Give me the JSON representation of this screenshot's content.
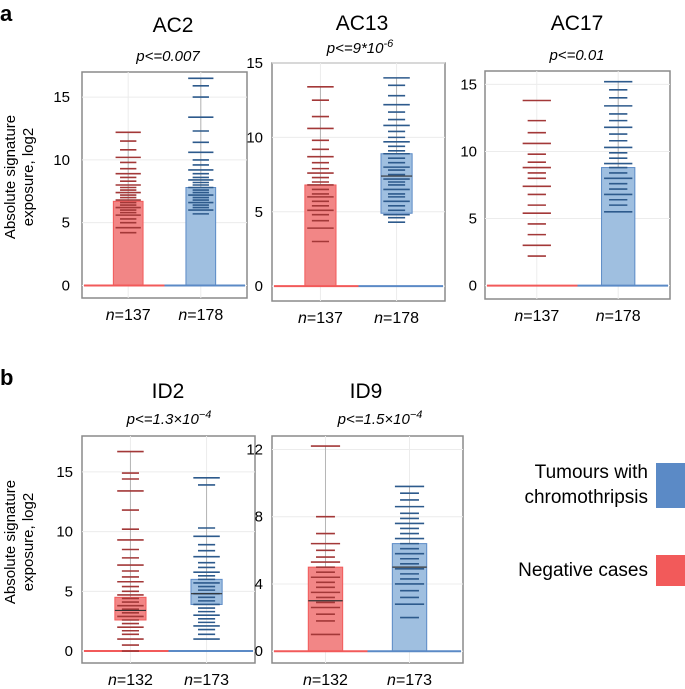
{
  "figure": {
    "panel_a": "a",
    "panel_b": "b",
    "ylabel_line1": "Absolute signature",
    "ylabel_line2": "exposure,  log2"
  },
  "legend": [
    {
      "label_line1": "Tumours with",
      "label_line2": "chromothripsis",
      "color": "#5b8ac6"
    },
    {
      "label_line1": "Negative cases",
      "label_line2": "",
      "color": "#f25a5a"
    }
  ],
  "chart_data": [
    {
      "type": "box-dot",
      "title": "AC2",
      "pvalue": "p<=0.007",
      "ylim": [
        -1,
        17
      ],
      "yticks": [
        0,
        5,
        10,
        15
      ],
      "groups": [
        {
          "name": "Negative cases",
          "n_label": "n",
          "n_value": "=137",
          "box_low": 0,
          "box_high": 6.7,
          "median": 0,
          "whisker_top": 12.2,
          "dots": [
            12.2,
            11.5,
            10.8,
            10.2,
            9.8,
            9.3,
            8.9,
            8.6,
            8.3,
            8.0,
            7.8,
            7.6,
            7.4,
            7.2,
            7.0,
            6.8,
            6.6,
            6.4,
            6.2,
            6.0,
            5.8,
            5.6,
            5.3,
            5.0,
            4.6,
            4.2
          ]
        },
        {
          "name": "Tumours with chromothripsis",
          "n_label": "n",
          "n_value": "=178",
          "box_low": 0,
          "box_high": 7.8,
          "median": 0,
          "whisker_top": 16.5,
          "dots": [
            16.5,
            15.9,
            15.0,
            13.4,
            12.3,
            11.4,
            10.6,
            10.0,
            9.6,
            9.2,
            8.9,
            8.6,
            8.4,
            8.2,
            8.0,
            7.8,
            7.6,
            7.4,
            7.2,
            7.0,
            6.8,
            6.6,
            6.4,
            6.2,
            6.0,
            5.7
          ]
        }
      ]
    },
    {
      "type": "box-dot",
      "title": "AC13",
      "pvalue": "p<=9*10",
      "pvalue_exp": "-6",
      "ylim": [
        -1,
        15
      ],
      "yticks": [
        0,
        5,
        10,
        15
      ],
      "groups": [
        {
          "name": "Negative cases",
          "n_label": "n",
          "n_value": "=137",
          "box_low": 0,
          "box_high": 6.8,
          "median": 0,
          "whisker_top": 13.4,
          "dots": [
            13.4,
            12.5,
            11.4,
            10.6,
            9.8,
            9.2,
            8.7,
            8.3,
            7.9,
            7.6,
            7.3,
            7.0,
            6.8,
            6.5,
            6.2,
            6.0,
            5.7,
            5.4,
            5.1,
            4.8,
            4.4,
            3.9,
            3.0
          ]
        },
        {
          "name": "Tumours with chromothripsis",
          "n_label": "n",
          "n_value": "=178",
          "box_low": 4.9,
          "box_high": 8.9,
          "median": 7.4,
          "whisker_top": 14.0,
          "dots": [
            14.0,
            13.5,
            12.8,
            12.2,
            11.7,
            11.2,
            10.8,
            10.4,
            10.0,
            9.7,
            9.4,
            9.1,
            8.9,
            8.6,
            8.3,
            8.0,
            7.8,
            7.5,
            7.2,
            7.0,
            6.8,
            6.5,
            6.2,
            6.0,
            5.7,
            5.4,
            5.1,
            4.8,
            4.6,
            4.3
          ]
        }
      ]
    },
    {
      "type": "box-dot",
      "title": "AC17",
      "pvalue": "p<=0.01",
      "ylim": [
        -1,
        16
      ],
      "yticks": [
        0,
        5,
        10,
        15
      ],
      "groups": [
        {
          "name": "Negative cases",
          "n_label": "n",
          "n_value": "=137",
          "box_low": 0,
          "box_high": 0,
          "median": 0,
          "whisker_top": 0,
          "dots": [
            13.8,
            12.3,
            11.4,
            10.6,
            9.8,
            9.2,
            8.8,
            8.4,
            8.0,
            7.4,
            6.8,
            6.0,
            5.4,
            4.6,
            3.8,
            3.0,
            2.2
          ]
        },
        {
          "name": "Tumours with chromothripsis",
          "n_label": "n",
          "n_value": "=178",
          "box_low": 0,
          "box_high": 8.8,
          "median": 0,
          "whisker_top": 15.2,
          "dots": [
            15.2,
            14.6,
            14.0,
            13.4,
            12.8,
            12.3,
            11.8,
            11.3,
            10.8,
            10.3,
            9.9,
            9.5,
            9.1,
            8.8,
            8.4,
            8.0,
            7.6,
            7.2,
            6.8,
            6.4,
            6.0,
            5.5
          ]
        }
      ]
    },
    {
      "type": "box-dot",
      "title": "ID2",
      "pvalue": "p<=1.3×10",
      "pvalue_exp": "−4",
      "ylim": [
        -1,
        18
      ],
      "yticks": [
        0,
        5,
        10,
        15
      ],
      "groups": [
        {
          "name": "Negative cases",
          "n_label": "n",
          "n_value": "=132",
          "box_low": 2.6,
          "box_high": 4.5,
          "median": 3.4,
          "whisker_top": 16.7,
          "dots": [
            16.7,
            14.9,
            14.4,
            13.4,
            11.8,
            10.2,
            9.3,
            8.5,
            7.8,
            7.2,
            6.7,
            6.2,
            5.8,
            5.4,
            5.0,
            4.7,
            4.4,
            4.1,
            3.8,
            3.5,
            3.2,
            2.9,
            2.6,
            2.3,
            2.0,
            1.7,
            1.4,
            1.0,
            0.5,
            0.0
          ]
        },
        {
          "name": "Tumours with chromothripsis",
          "n_label": "n",
          "n_value": "=173",
          "box_low": 3.9,
          "box_high": 6.0,
          "median": 4.8,
          "whisker_top": 14.5,
          "dots": [
            14.5,
            13.9,
            10.3,
            9.6,
            8.9,
            8.4,
            7.9,
            7.4,
            7.0,
            6.6,
            6.3,
            6.0,
            5.7,
            5.4,
            5.1,
            4.8,
            4.5,
            4.2,
            3.9,
            3.6,
            3.3,
            3.0,
            2.7,
            2.4,
            2.1,
            1.8,
            1.4,
            1.0
          ]
        }
      ]
    },
    {
      "type": "box-dot",
      "title": "ID9",
      "pvalue": "p<=1.5×10",
      "pvalue_exp": "−4",
      "ylim": [
        -0.7,
        12.8
      ],
      "yticks": [
        0,
        4,
        8,
        12
      ],
      "groups": [
        {
          "name": "Negative cases",
          "n_label": "n",
          "n_value": "=132",
          "box_low": 0,
          "box_high": 5.0,
          "median": 3.0,
          "whisker_top": 12.2,
          "dots": [
            12.2,
            8.0,
            7.0,
            6.4,
            6.0,
            5.6,
            5.3,
            5.0,
            4.7,
            4.4,
            4.1,
            3.8,
            3.5,
            3.2,
            2.9,
            2.6,
            2.2,
            1.8,
            1.0
          ]
        },
        {
          "name": "Tumours with chromothripsis",
          "n_label": "n",
          "n_value": "=173",
          "box_low": 0,
          "box_high": 6.4,
          "median": 5.0,
          "whisker_top": 9.8,
          "dots": [
            9.8,
            9.4,
            9.0,
            8.6,
            8.2,
            7.9,
            7.6,
            7.3,
            7.0,
            6.7,
            6.4,
            6.1,
            5.8,
            5.5,
            5.2,
            4.9,
            4.6,
            4.3,
            4.0,
            3.6,
            3.2,
            2.8,
            2.0
          ]
        }
      ]
    }
  ]
}
